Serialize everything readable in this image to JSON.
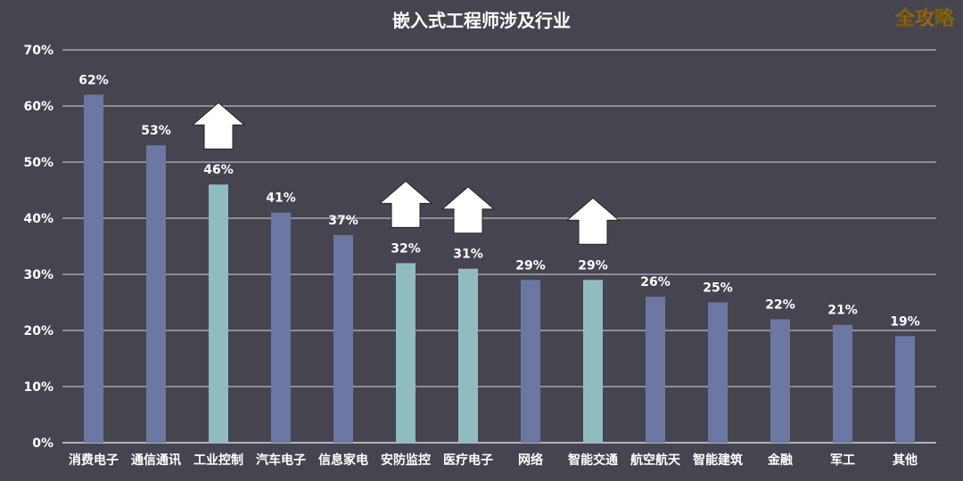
{
  "chart_data": {
    "type": "bar",
    "title": "嵌入式工程师涉及行业",
    "xlabel": "",
    "ylabel": "",
    "ylim": [
      0,
      70
    ],
    "yticks": [
      "0%",
      "10%",
      "20%",
      "30%",
      "40%",
      "50%",
      "60%",
      "70%"
    ],
    "grid": true,
    "categories": [
      "消费电子",
      "通信通讯",
      "工业控制",
      "汽车电子",
      "信息家电",
      "安防监控",
      "医疗电子",
      "网络",
      "智能交通",
      "航空航天",
      "智能建筑",
      "金融",
      "军工",
      "其他"
    ],
    "values": [
      62,
      53,
      46,
      41,
      37,
      32,
      31,
      29,
      29,
      26,
      25,
      22,
      21,
      19
    ],
    "labels": [
      "62%",
      "53%",
      "46%",
      "41%",
      "37%",
      "32%",
      "31%",
      "29%",
      "29%",
      "26%",
      "25%",
      "22%",
      "21%",
      "19%"
    ],
    "highlighted": [
      false,
      false,
      true,
      false,
      false,
      true,
      true,
      false,
      true,
      false,
      false,
      false,
      false,
      false
    ],
    "colors": {
      "normal": "#6c77a4",
      "highlight": "#90bcc0",
      "background": "#46444f",
      "grid": "#d8d8e0"
    }
  },
  "watermark": "全攻略"
}
